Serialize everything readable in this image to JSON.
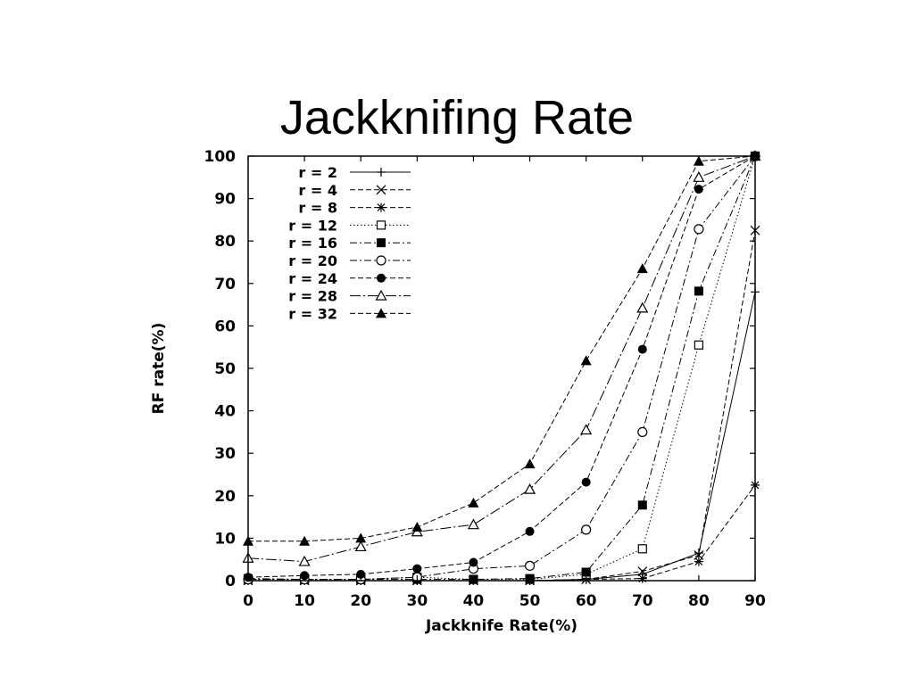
{
  "slide": {
    "title": "Jackknifing Rate"
  },
  "chart_data": {
    "type": "line",
    "title": "",
    "xlabel": "Jackknife Rate(%)",
    "ylabel": "RF rate(%)",
    "xlim": [
      0,
      90
    ],
    "ylim": [
      0,
      100
    ],
    "x_ticks": [
      0,
      10,
      20,
      30,
      40,
      50,
      60,
      70,
      80,
      90
    ],
    "y_ticks": [
      0,
      10,
      20,
      30,
      40,
      50,
      60,
      70,
      80,
      90,
      100
    ],
    "grid": false,
    "legend_position": "top-left",
    "x": [
      0,
      10,
      20,
      30,
      40,
      50,
      60,
      70,
      80,
      90
    ],
    "series": [
      {
        "name": "r = 2",
        "marker": "plus",
        "dash": "solid",
        "values": [
          0,
          0,
          0,
          0,
          0,
          0,
          0.3,
          1.5,
          6.5,
          68
        ]
      },
      {
        "name": "r = 4",
        "marker": "cross",
        "dash": "dashed",
        "values": [
          0,
          0,
          0,
          0,
          0,
          0,
          0.3,
          2.2,
          6.0,
          82.5
        ]
      },
      {
        "name": "r = 8",
        "marker": "star",
        "dash": "dashed",
        "values": [
          0,
          0,
          0,
          0,
          0,
          0,
          0.3,
          0.5,
          4.5,
          22.5
        ]
      },
      {
        "name": "r = 12",
        "marker": "open-square",
        "dash": "dotted",
        "values": [
          0.3,
          0.3,
          0.3,
          0.8,
          0.3,
          0.3,
          1.5,
          7.5,
          55.5,
          100
        ]
      },
      {
        "name": "r = 16",
        "marker": "filled-square",
        "dash": "dashdot",
        "values": [
          0.5,
          0.3,
          0.3,
          0.3,
          0.3,
          0.5,
          2.0,
          17.8,
          68.2,
          100
        ]
      },
      {
        "name": "r = 20",
        "marker": "open-circle",
        "dash": "dashdot",
        "values": [
          0.3,
          0.3,
          0.3,
          0.8,
          2.8,
          3.5,
          12.0,
          35.0,
          82.8,
          100
        ]
      },
      {
        "name": "r = 24",
        "marker": "filled-circle",
        "dash": "dashed",
        "values": [
          0.8,
          1.2,
          1.5,
          2.8,
          4.3,
          11.6,
          23.2,
          54.5,
          92.2,
          100
        ]
      },
      {
        "name": "r = 28",
        "marker": "open-triangle",
        "dash": "longdash",
        "values": [
          5.3,
          4.5,
          8.0,
          11.5,
          13.2,
          21.5,
          35.5,
          64.2,
          95.0,
          100
        ]
      },
      {
        "name": "r = 32",
        "marker": "filled-triangle",
        "dash": "dashed",
        "values": [
          9.3,
          9.3,
          10.0,
          12.6,
          18.3,
          27.5,
          51.8,
          73.5,
          98.8,
          100
        ]
      }
    ]
  }
}
